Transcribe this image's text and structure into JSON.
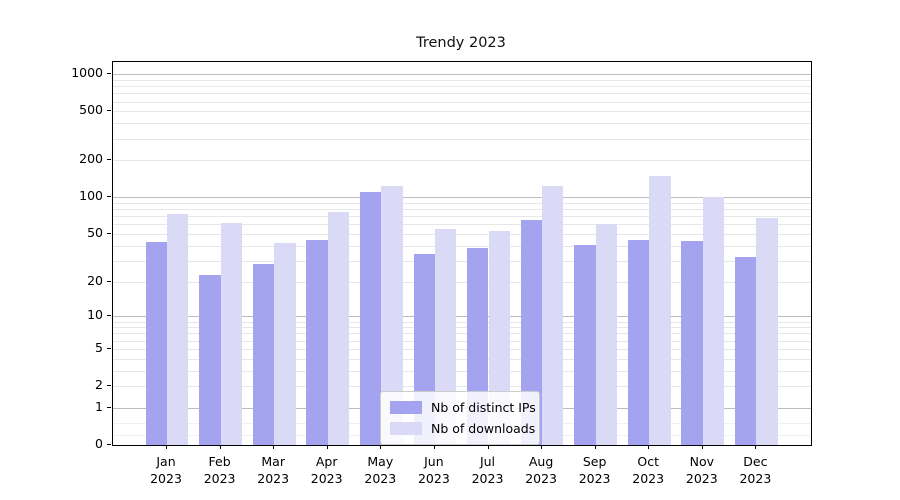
{
  "chart_data": {
    "type": "bar",
    "title": "Trendy 2023",
    "categories": [
      "Jan 2023",
      "Feb 2023",
      "Mar 2023",
      "Apr 2023",
      "May 2023",
      "Jun 2023",
      "Jul 2023",
      "Aug 2023",
      "Sep 2023",
      "Oct 2023",
      "Nov 2023",
      "Dec 2023"
    ],
    "series": [
      {
        "name": "Nb of distinct IPs",
        "color": "#a3a3ef",
        "values": [
          43,
          23,
          28,
          45,
          110,
          34,
          38,
          65,
          41,
          45,
          44,
          32
        ]
      },
      {
        "name": "Nb of downloads",
        "color": "#dadaf7",
        "values": [
          73,
          62,
          42,
          76,
          125,
          55,
          53,
          125,
          60,
          150,
          100,
          68
        ]
      }
    ],
    "xlabel": "",
    "ylabel": "",
    "yscale": "log1p",
    "ytick_labels": [
      "0",
      "1",
      "2",
      "5",
      "10",
      "20",
      "50",
      "100",
      "200",
      "500",
      "1000"
    ],
    "ytick_values": [
      0,
      1,
      2,
      5,
      10,
      20,
      50,
      100,
      200,
      500,
      1000
    ],
    "major_grid_values": [
      1,
      10,
      100,
      1000
    ],
    "minor_grid_values": [
      2,
      3,
      4,
      5,
      6,
      7,
      8,
      9,
      20,
      30,
      40,
      50,
      60,
      70,
      80,
      90,
      200,
      300,
      400,
      500,
      600,
      700,
      800,
      900
    ],
    "subminor_grid_values": [
      0.2,
      0.5
    ],
    "ylim": [
      0,
      1258
    ],
    "grid": "horizontal",
    "legend_position": "lower center"
  },
  "colors": {
    "major_grid": "#bdbdbd",
    "minor_grid": "#e7e7e7",
    "axis": "#000000",
    "background": "#ffffff"
  }
}
